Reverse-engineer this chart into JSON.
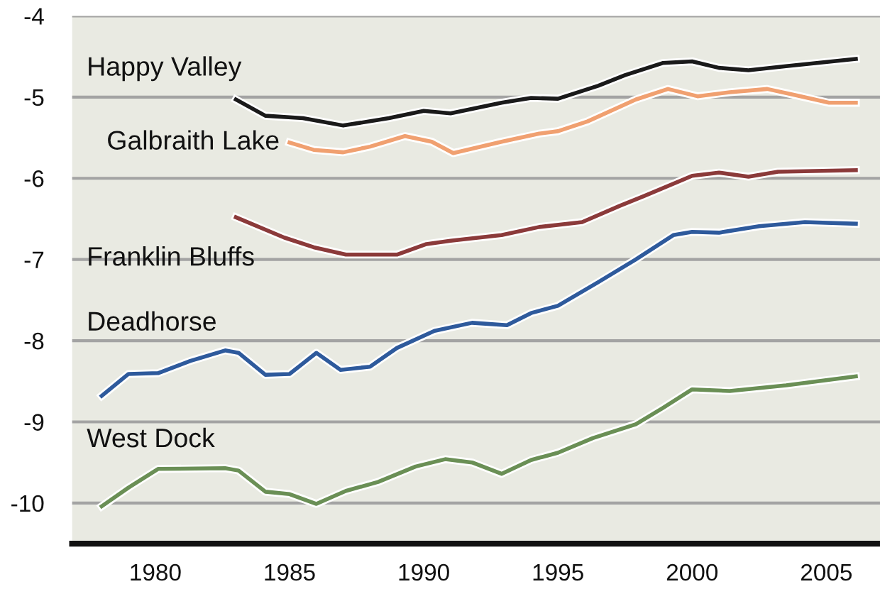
{
  "chart_data": {
    "type": "line",
    "xlim": [
      1976.9,
      2007
    ],
    "xticks": [
      1980,
      1985,
      1990,
      1995,
      2000,
      2005
    ],
    "ylim": [
      -10.5,
      -4
    ],
    "yticks": [
      -10,
      -9,
      -8,
      -7,
      -6,
      -5,
      -4
    ],
    "grid": "y",
    "legend": false,
    "marker": "none",
    "line_style": "solid",
    "series": [
      {
        "name": "Happy Valley",
        "color": "#1a1a1a",
        "x": [
          1983.0,
          1984.1,
          1985.5,
          1987.0,
          1988.7,
          1990.0,
          1991.0,
          1992.9,
          1994.0,
          1995.0,
          1996.5,
          1997.5,
          1998.9,
          2000.0,
          2001.0,
          2002.1,
          2003.5,
          2006.1
        ],
        "values": [
          -5.03,
          -5.23,
          -5.26,
          -5.35,
          -5.26,
          -5.17,
          -5.2,
          -5.07,
          -5.01,
          -5.02,
          -4.86,
          -4.73,
          -4.58,
          -4.56,
          -4.64,
          -4.67,
          -4.62,
          -4.53
        ]
      },
      {
        "name": "Galbraith Lake",
        "color": "#f0a070",
        "x": [
          1985.0,
          1985.9,
          1987.0,
          1988.0,
          1989.3,
          1990.3,
          1991.1,
          1992.9,
          1994.3,
          1995.0,
          1996.1,
          1997.9,
          1999.1,
          2000.2,
          2001.4,
          2002.8,
          2003.9,
          2005.1,
          2006.1
        ],
        "values": [
          -5.56,
          -5.65,
          -5.68,
          -5.61,
          -5.48,
          -5.55,
          -5.69,
          -5.55,
          -5.45,
          -5.42,
          -5.3,
          -5.03,
          -4.9,
          -4.99,
          -4.94,
          -4.9,
          -4.98,
          -5.07,
          -5.07
        ]
      },
      {
        "name": "Franklin Bluffs",
        "color": "#8b3a3a",
        "x": [
          1983.0,
          1984.8,
          1985.9,
          1987.1,
          1989.0,
          1990.1,
          1991.0,
          1992.9,
          1994.3,
          1995.9,
          1997.3,
          1998.2,
          2000.0,
          2001.0,
          2002.1,
          2003.2,
          2006.1
        ],
        "values": [
          -6.48,
          -6.73,
          -6.85,
          -6.94,
          -6.94,
          -6.81,
          -6.77,
          -6.7,
          -6.6,
          -6.54,
          -6.34,
          -6.22,
          -5.97,
          -5.93,
          -5.98,
          -5.92,
          -5.9
        ]
      },
      {
        "name": "Deadhorse",
        "color": "#2e5a9c",
        "x": [
          1978.0,
          1979.0,
          1980.1,
          1981.3,
          1982.6,
          1983.1,
          1984.1,
          1985.0,
          1986.0,
          1986.9,
          1988.0,
          1989.0,
          1990.4,
          1991.8,
          1993.1,
          1994.0,
          1995.0,
          1996.5,
          1997.9,
          1999.3,
          2000.0,
          2001.0,
          2002.5,
          2004.2,
          2006.1
        ],
        "values": [
          -8.68,
          -8.41,
          -8.4,
          -8.25,
          -8.12,
          -8.15,
          -8.42,
          -8.41,
          -8.15,
          -8.36,
          -8.32,
          -8.09,
          -7.88,
          -7.78,
          -7.81,
          -7.66,
          -7.57,
          -7.28,
          -7.0,
          -6.7,
          -6.66,
          -6.67,
          -6.59,
          -6.54,
          -6.56
        ]
      },
      {
        "name": "West Dock",
        "color": "#6a8f55",
        "x": [
          1978.0,
          1979.0,
          1980.1,
          1982.6,
          1983.1,
          1984.1,
          1985.0,
          1986.0,
          1987.1,
          1988.3,
          1989.7,
          1990.8,
          1991.8,
          1992.9,
          1994.0,
          1995.0,
          1996.3,
          1997.9,
          1998.9,
          2000.0,
          2001.4,
          2003.5,
          2006.1
        ],
        "values": [
          -10.04,
          -9.81,
          -9.58,
          -9.57,
          -9.6,
          -9.86,
          -9.89,
          -10.01,
          -9.85,
          -9.74,
          -9.55,
          -9.46,
          -9.5,
          -9.64,
          -9.47,
          -9.38,
          -9.2,
          -9.03,
          -8.83,
          -8.6,
          -8.62,
          -8.55,
          -8.44
        ]
      }
    ]
  }
}
